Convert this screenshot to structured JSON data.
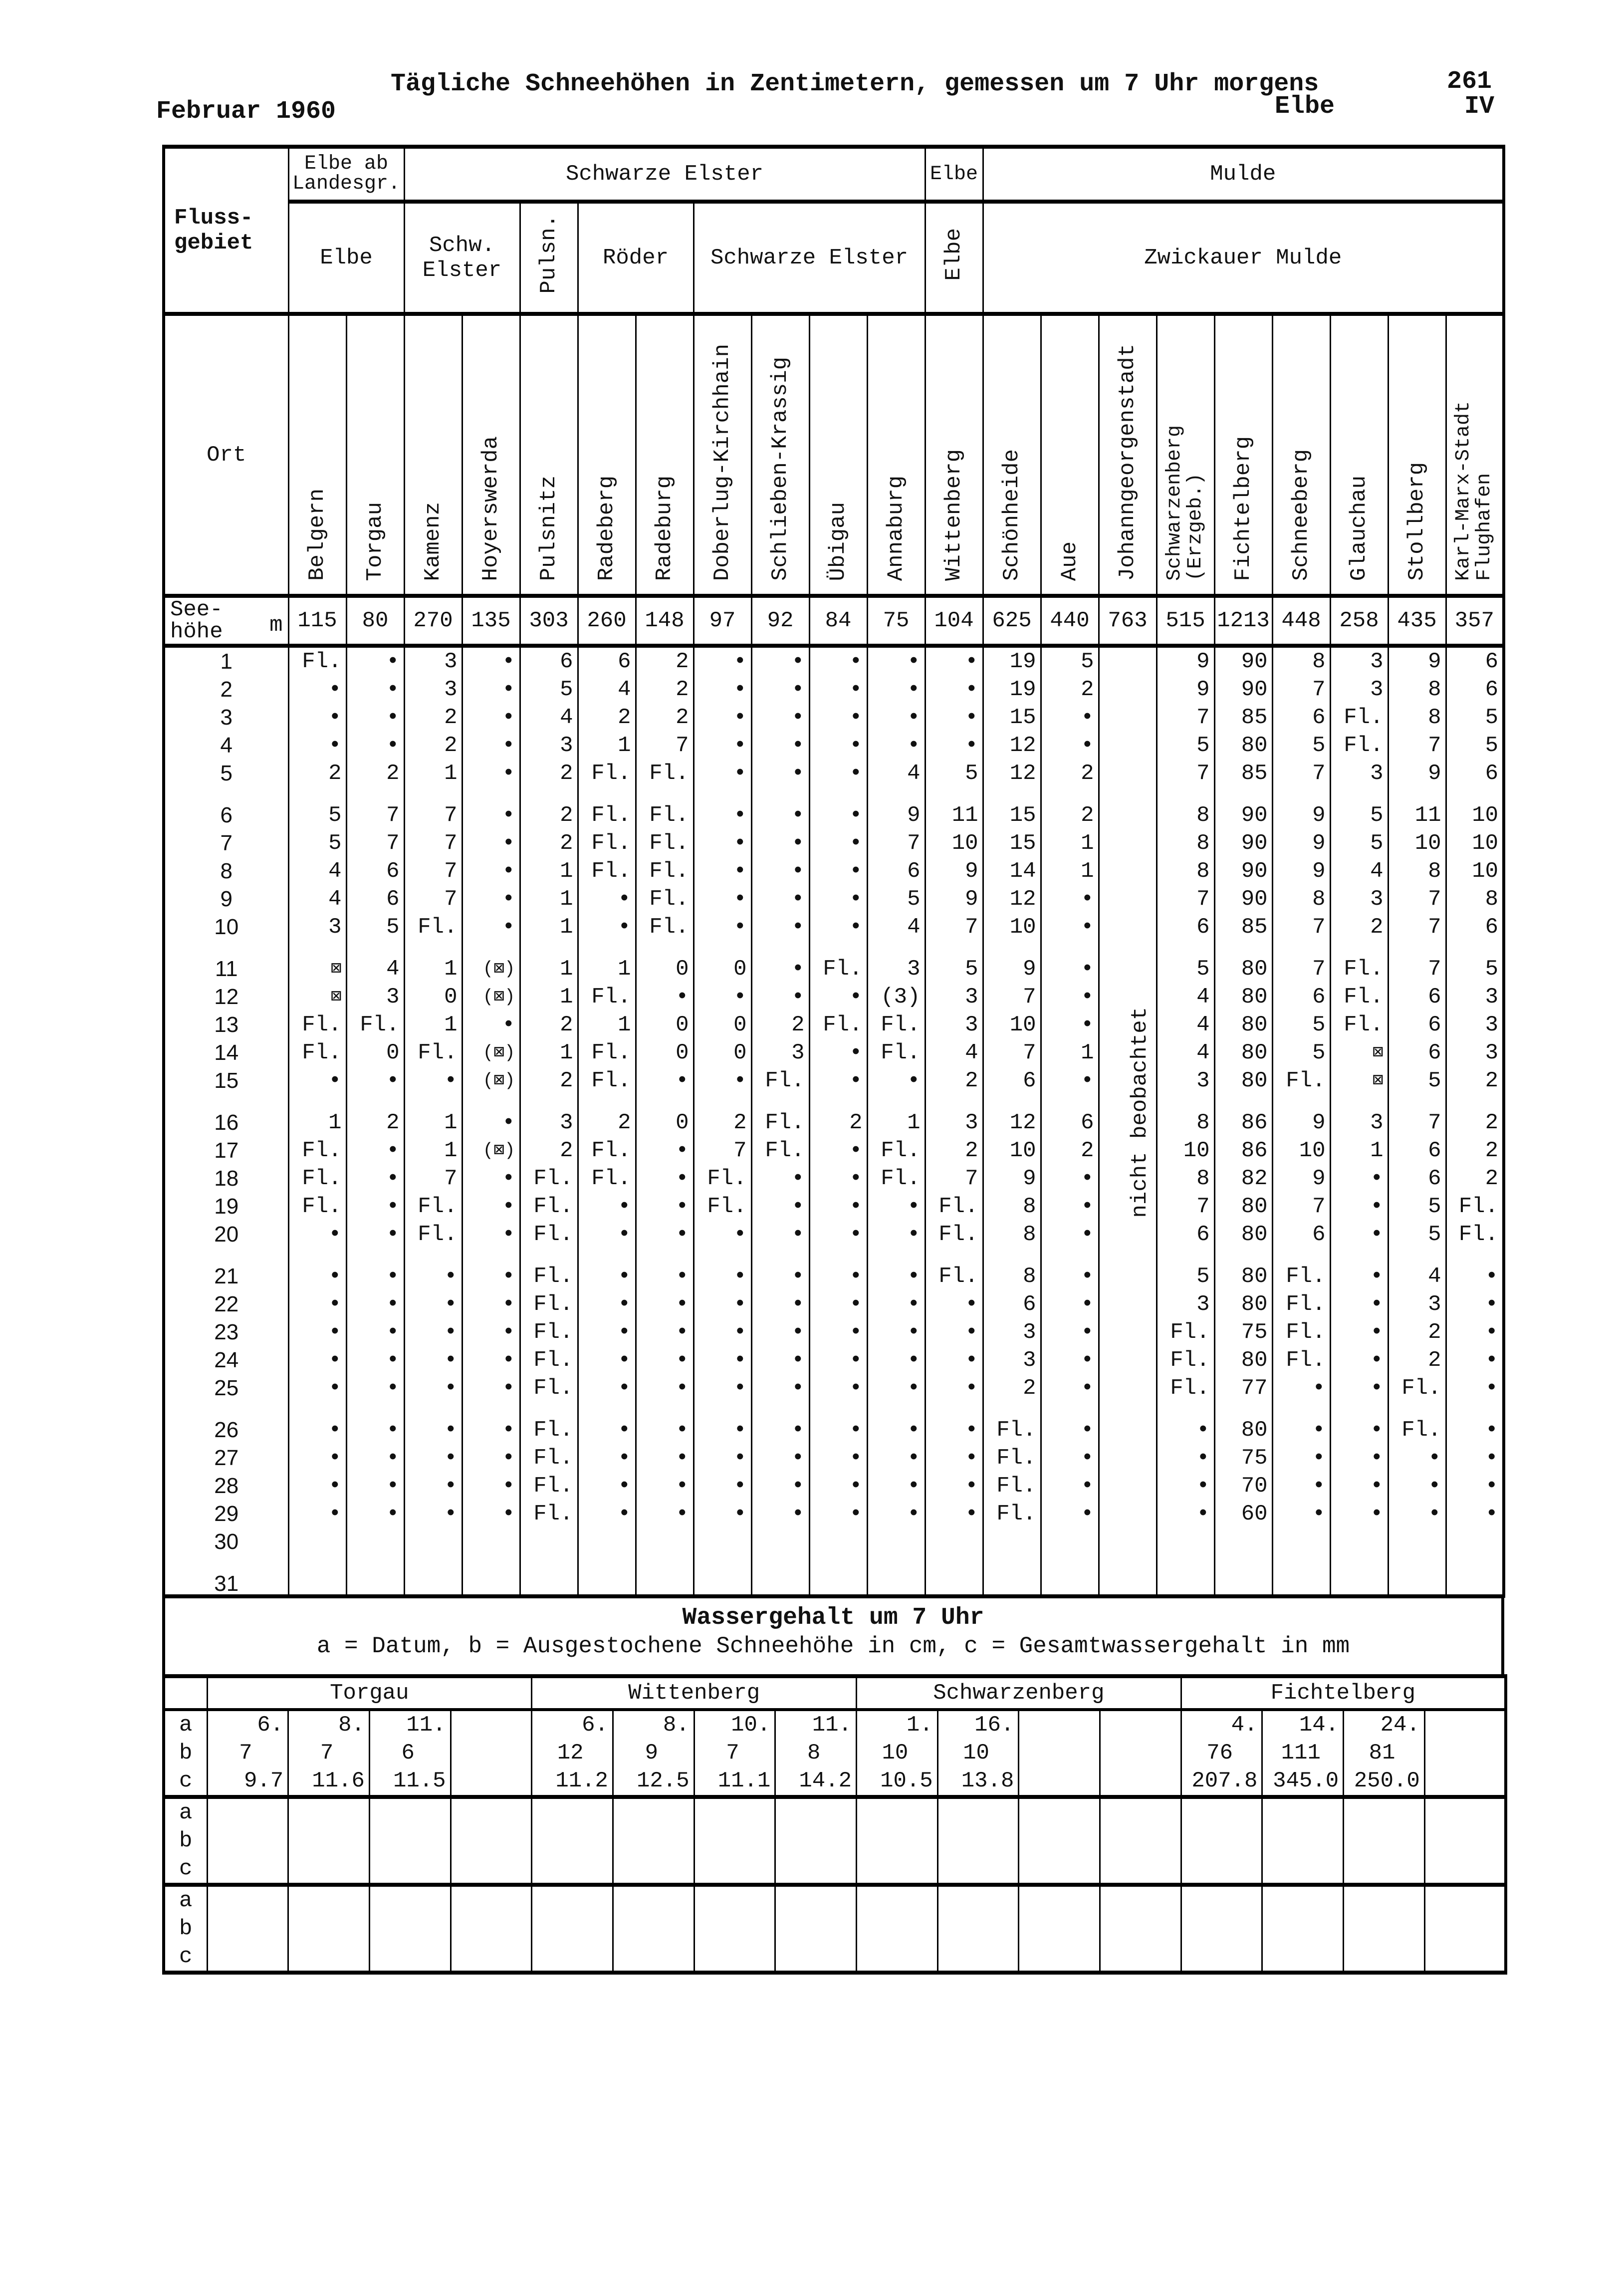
{
  "page": {
    "month": "Februar 1960",
    "title": "Tägliche Schneehöhen in Zentimetern, gemessen um 7 Uhr morgens",
    "page_number": "261",
    "basin": "Elbe",
    "volume": "IV"
  },
  "header": {
    "flussgebiet": "Fluss-gebiet",
    "ort": "Ort",
    "seehoehe": "See-höhe",
    "seehoehe_unit": "m",
    "level1": [
      "Elbe ab Landesgr.",
      "Schwarze Elster",
      "Elbe",
      "Mulde"
    ],
    "level2": [
      "Elbe",
      "Schw. Elster",
      "Pulsn.",
      "Röder",
      "Schwarze Elster",
      "Elbe",
      "Zwickauer Mulde"
    ]
  },
  "stations": [
    {
      "name": "Belgern",
      "elev": "115"
    },
    {
      "name": "Torgau",
      "elev": "80"
    },
    {
      "name": "Kamenz",
      "elev": "270"
    },
    {
      "name": "Hoyerswerda",
      "elev": "135"
    },
    {
      "name": "Pulsnitz",
      "elev": "303"
    },
    {
      "name": "Radeberg",
      "elev": "260"
    },
    {
      "name": "Radeburg",
      "elev": "148"
    },
    {
      "name": "Doberlug-Kirchhain",
      "elev": "97"
    },
    {
      "name": "Schlieben-Krassig",
      "elev": "92"
    },
    {
      "name": "Übigau",
      "elev": "84"
    },
    {
      "name": "Annaburg",
      "elev": "75"
    },
    {
      "name": "Wittenberg",
      "elev": "104"
    },
    {
      "name": "Schönheide",
      "elev": "625"
    },
    {
      "name": "Aue",
      "elev": "440"
    },
    {
      "name": "Johanngeorgenstadt",
      "elev": "763"
    },
    {
      "name": "Schwarzenberg (Erzgeb.)",
      "elev": "515"
    },
    {
      "name": "Fichtelberg",
      "elev": "1213"
    },
    {
      "name": "Schneeberg",
      "elev": "448"
    },
    {
      "name": "Glauchau",
      "elev": "258"
    },
    {
      "name": "Stollberg",
      "elev": "435"
    },
    {
      "name": "Karl-Marx-Stadt Flughafen",
      "elev": "357"
    }
  ],
  "not_observed_note": "nicht beobachtet",
  "days": [
    {
      "day": "1",
      "v": [
        "Fl.",
        "•",
        "3",
        "•",
        "6",
        "6",
        "2",
        "•",
        "•",
        "•",
        "•",
        "•",
        "19",
        "5",
        "",
        "9",
        "90",
        "8",
        "3",
        "9",
        "6"
      ]
    },
    {
      "day": "2",
      "v": [
        "•",
        "•",
        "3",
        "•",
        "5",
        "4",
        "2",
        "•",
        "•",
        "•",
        "•",
        "•",
        "19",
        "2",
        "",
        "9",
        "90",
        "7",
        "3",
        "8",
        "6"
      ]
    },
    {
      "day": "3",
      "v": [
        "•",
        "•",
        "2",
        "•",
        "4",
        "2",
        "2",
        "•",
        "•",
        "•",
        "•",
        "•",
        "15",
        "•",
        "",
        "7",
        "85",
        "6",
        "Fl.",
        "8",
        "5"
      ]
    },
    {
      "day": "4",
      "v": [
        "•",
        "•",
        "2",
        "•",
        "3",
        "1",
        "7",
        "•",
        "•",
        "•",
        "•",
        "•",
        "12",
        "•",
        "",
        "5",
        "80",
        "5",
        "Fl.",
        "7",
        "5"
      ]
    },
    {
      "day": "5",
      "v": [
        "2",
        "2",
        "1",
        "•",
        "2",
        "Fl.",
        "Fl.",
        "•",
        "•",
        "•",
        "4",
        "5",
        "12",
        "2",
        "",
        "7",
        "85",
        "7",
        "3",
        "9",
        "6"
      ]
    },
    {
      "day": "6",
      "v": [
        "5",
        "7",
        "7",
        "•",
        "2",
        "Fl.",
        "Fl.",
        "•",
        "•",
        "•",
        "9",
        "11",
        "15",
        "2",
        "",
        "8",
        "90",
        "9",
        "5",
        "11",
        "10"
      ]
    },
    {
      "day": "7",
      "v": [
        "5",
        "7",
        "7",
        "•",
        "2",
        "Fl.",
        "Fl.",
        "•",
        "•",
        "•",
        "7",
        "10",
        "15",
        "1",
        "",
        "8",
        "90",
        "9",
        "5",
        "10",
        "10"
      ]
    },
    {
      "day": "8",
      "v": [
        "4",
        "6",
        "7",
        "•",
        "1",
        "Fl.",
        "Fl.",
        "•",
        "•",
        "•",
        "6",
        "9",
        "14",
        "1",
        "",
        "8",
        "90",
        "9",
        "4",
        "8",
        "10"
      ]
    },
    {
      "day": "9",
      "v": [
        "4",
        "6",
        "7",
        "•",
        "1",
        "•",
        "Fl.",
        "•",
        "•",
        "•",
        "5",
        "9",
        "12",
        "•",
        "",
        "7",
        "90",
        "8",
        "3",
        "7",
        "8"
      ]
    },
    {
      "day": "10",
      "v": [
        "3",
        "5",
        "Fl.",
        "•",
        "1",
        "•",
        "Fl.",
        "•",
        "•",
        "•",
        "4",
        "7",
        "10",
        "•",
        "",
        "6",
        "85",
        "7",
        "2",
        "7",
        "6"
      ]
    },
    {
      "day": "11",
      "v": [
        "⊠",
        "4",
        "1",
        "(⊠)",
        "1",
        "1",
        "0",
        "0",
        "•",
        "Fl.",
        "3",
        "5",
        "9",
        "•",
        "",
        "5",
        "80",
        "7",
        "Fl.",
        "7",
        "5"
      ]
    },
    {
      "day": "12",
      "v": [
        "⊠",
        "3",
        "0",
        "(⊠)",
        "1",
        "Fl.",
        "•",
        "•",
        "•",
        "•",
        "(3)",
        "3",
        "7",
        "•",
        "",
        "4",
        "80",
        "6",
        "Fl.",
        "6",
        "3"
      ]
    },
    {
      "day": "13",
      "v": [
        "Fl.",
        "Fl.",
        "1",
        "•",
        "2",
        "1",
        "0",
        "0",
        "2",
        "Fl.",
        "Fl.",
        "3",
        "10",
        "•",
        "",
        "4",
        "80",
        "5",
        "Fl.",
        "6",
        "3"
      ]
    },
    {
      "day": "14",
      "v": [
        "Fl.",
        "0",
        "Fl.",
        "(⊠)",
        "1",
        "Fl.",
        "0",
        "0",
        "3",
        "•",
        "Fl.",
        "4",
        "7",
        "1",
        "",
        "4",
        "80",
        "5",
        "⊠",
        "6",
        "3"
      ]
    },
    {
      "day": "15",
      "v": [
        "•",
        "•",
        "•",
        "(⊠)",
        "2",
        "Fl.",
        "•",
        "•",
        "Fl.",
        "•",
        "•",
        "2",
        "6",
        "•",
        "",
        "3",
        "80",
        "Fl.",
        "⊠",
        "5",
        "2"
      ]
    },
    {
      "day": "16",
      "v": [
        "1",
        "2",
        "1",
        "•",
        "3",
        "2",
        "0",
        "2",
        "Fl.",
        "2",
        "1",
        "3",
        "12",
        "6",
        "",
        "8",
        "86",
        "9",
        "3",
        "7",
        "2"
      ]
    },
    {
      "day": "17",
      "v": [
        "Fl.",
        "•",
        "1",
        "(⊠)",
        "2",
        "Fl.",
        "•",
        "7",
        "Fl.",
        "•",
        "Fl.",
        "2",
        "10",
        "2",
        "",
        "10",
        "86",
        "10",
        "1",
        "6",
        "2"
      ]
    },
    {
      "day": "18",
      "v": [
        "Fl.",
        "•",
        "7",
        "•",
        "Fl.",
        "Fl.",
        "•",
        "Fl.",
        "•",
        "•",
        "Fl.",
        "7",
        "9",
        "•",
        "",
        "8",
        "82",
        "9",
        "•",
        "6",
        "2"
      ]
    },
    {
      "day": "19",
      "v": [
        "Fl.",
        "•",
        "Fl.",
        "•",
        "Fl.",
        "•",
        "•",
        "Fl.",
        "•",
        "•",
        "•",
        "Fl.",
        "8",
        "•",
        "",
        "7",
        "80",
        "7",
        "•",
        "5",
        "Fl."
      ]
    },
    {
      "day": "20",
      "v": [
        "•",
        "•",
        "Fl.",
        "•",
        "Fl.",
        "•",
        "•",
        "•",
        "•",
        "•",
        "•",
        "Fl.",
        "8",
        "•",
        "",
        "6",
        "80",
        "6",
        "•",
        "5",
        "Fl."
      ]
    },
    {
      "day": "21",
      "v": [
        "•",
        "•",
        "•",
        "•",
        "Fl.",
        "•",
        "•",
        "•",
        "•",
        "•",
        "•",
        "Fl.",
        "8",
        "•",
        "",
        "5",
        "80",
        "Fl.",
        "•",
        "4",
        "•"
      ]
    },
    {
      "day": "22",
      "v": [
        "•",
        "•",
        "•",
        "•",
        "Fl.",
        "•",
        "•",
        "•",
        "•",
        "•",
        "•",
        "•",
        "6",
        "•",
        "",
        "3",
        "80",
        "Fl.",
        "•",
        "3",
        "•"
      ]
    },
    {
      "day": "23",
      "v": [
        "•",
        "•",
        "•",
        "•",
        "Fl.",
        "•",
        "•",
        "•",
        "•",
        "•",
        "•",
        "•",
        "3",
        "•",
        "",
        "Fl.",
        "75",
        "Fl.",
        "•",
        "2",
        "•"
      ]
    },
    {
      "day": "24",
      "v": [
        "•",
        "•",
        "•",
        "•",
        "Fl.",
        "•",
        "•",
        "•",
        "•",
        "•",
        "•",
        "•",
        "3",
        "•",
        "",
        "Fl.",
        "80",
        "Fl.",
        "•",
        "2",
        "•"
      ]
    },
    {
      "day": "25",
      "v": [
        "•",
        "•",
        "•",
        "•",
        "Fl.",
        "•",
        "•",
        "•",
        "•",
        "•",
        "•",
        "•",
        "2",
        "•",
        "",
        "Fl.",
        "77",
        "•",
        "•",
        "Fl.",
        "•"
      ]
    },
    {
      "day": "26",
      "v": [
        "•",
        "•",
        "•",
        "•",
        "Fl.",
        "•",
        "•",
        "•",
        "•",
        "•",
        "•",
        "•",
        "Fl.",
        "•",
        "",
        "•",
        "80",
        "•",
        "•",
        "Fl.",
        "•"
      ]
    },
    {
      "day": "27",
      "v": [
        "•",
        "•",
        "•",
        "•",
        "Fl.",
        "•",
        "•",
        "•",
        "•",
        "•",
        "•",
        "•",
        "Fl.",
        "•",
        "",
        "•",
        "75",
        "•",
        "•",
        "•",
        "•"
      ]
    },
    {
      "day": "28",
      "v": [
        "•",
        "•",
        "•",
        "•",
        "Fl.",
        "•",
        "•",
        "•",
        "•",
        "•",
        "•",
        "•",
        "Fl.",
        "•",
        "",
        "•",
        "70",
        "•",
        "•",
        "•",
        "•"
      ]
    },
    {
      "day": "29",
      "v": [
        "•",
        "•",
        "•",
        "•",
        "Fl.",
        "•",
        "•",
        "•",
        "•",
        "•",
        "•",
        "•",
        "Fl.",
        "•",
        "",
        "•",
        "60",
        "•",
        "•",
        "•",
        "•"
      ]
    },
    {
      "day": "30",
      "v": [
        "",
        "",
        "",
        "",
        "",
        "",
        "",
        "",
        "",
        "",
        "",
        "",
        "",
        "",
        "",
        "",
        "",
        "",
        "",
        "",
        ""
      ]
    },
    {
      "day": "31",
      "v": [
        "",
        "",
        "",
        "",
        "",
        "",
        "",
        "",
        "",
        "",
        "",
        "",
        "",
        "",
        "",
        "",
        "",
        "",
        "",
        "",
        ""
      ]
    }
  ],
  "water": {
    "title": "Wassergehalt um 7 Uhr",
    "legend": "a = Datum, b = Ausgestochene Schneehöhe in cm, c = Gesamtwassergehalt in mm",
    "row_labels": [
      "a",
      "b",
      "c"
    ],
    "stations": [
      {
        "name": "Torgau",
        "cols": [
          [
            "6.",
            "7",
            "9.7"
          ],
          [
            "8.",
            "7",
            "11.6"
          ],
          [
            "11.",
            "6",
            "11.5"
          ],
          [
            "",
            "",
            ""
          ]
        ]
      },
      {
        "name": "Wittenberg",
        "cols": [
          [
            "6.",
            "12",
            "11.2"
          ],
          [
            "8.",
            "9",
            "12.5"
          ],
          [
            "10.",
            "7",
            "11.1"
          ],
          [
            "11.",
            "8",
            "14.2"
          ]
        ]
      },
      {
        "name": "Schwarzenberg",
        "cols": [
          [
            "1.",
            "10",
            "10.5"
          ],
          [
            "16.",
            "10",
            "13.8"
          ],
          [
            "",
            "",
            ""
          ],
          [
            "",
            "",
            ""
          ]
        ]
      },
      {
        "name": "Fichtelberg",
        "cols": [
          [
            "4.",
            "76",
            "207.8"
          ],
          [
            "14.",
            "111",
            "345.0"
          ],
          [
            "24.",
            "81",
            "250.0"
          ],
          [
            "",
            "",
            ""
          ]
        ]
      }
    ]
  }
}
